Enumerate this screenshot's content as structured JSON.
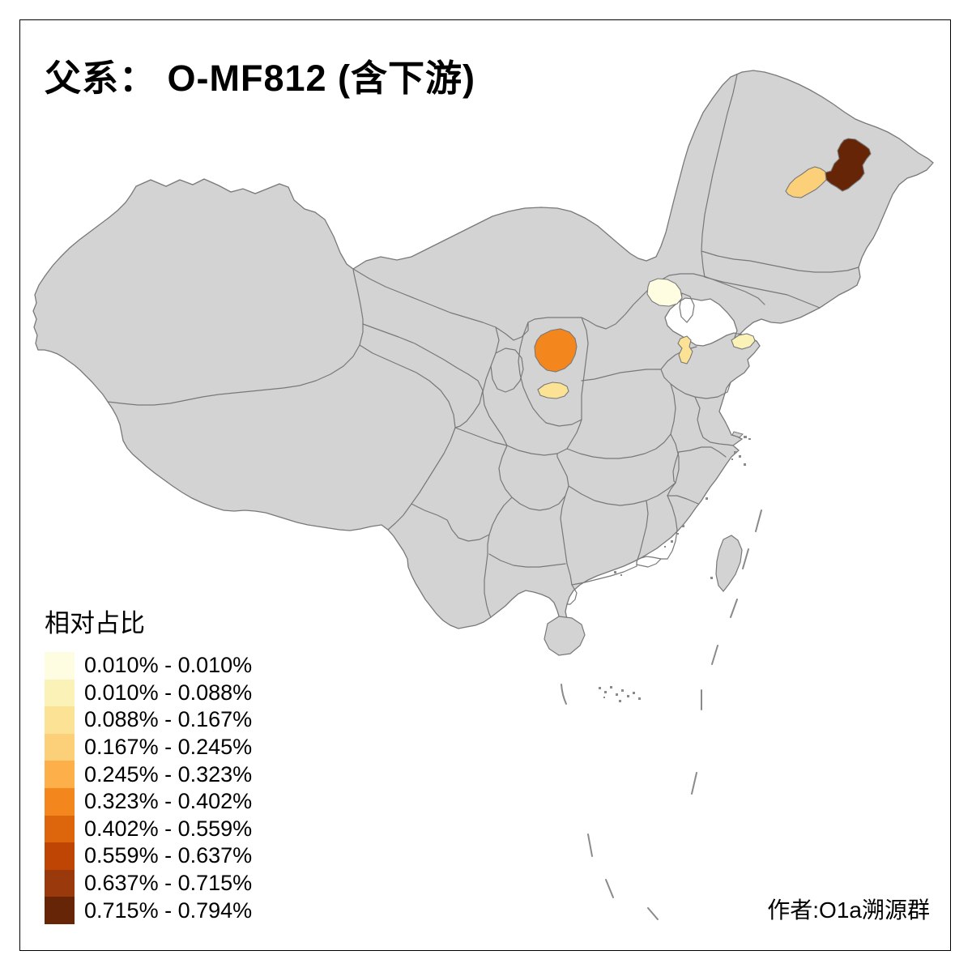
{
  "title": "父系： O-MF812 (含下游)",
  "legend": {
    "title": "相对占比",
    "classes": [
      {
        "color": "#FEFDE1",
        "label": "0.010% - 0.010%"
      },
      {
        "color": "#FBF2B7",
        "label": "0.010% - 0.088%"
      },
      {
        "color": "#FBE295",
        "label": "0.088% - 0.167%"
      },
      {
        "color": "#FCD078",
        "label": "0.167% - 0.245%"
      },
      {
        "color": "#FDB04A",
        "label": "0.245% - 0.323%"
      },
      {
        "color": "#F4861E",
        "label": "0.323% - 0.402%"
      },
      {
        "color": "#DD660D",
        "label": "0.402% - 0.559%"
      },
      {
        "color": "#BF4504",
        "label": "0.559% - 0.637%"
      },
      {
        "color": "#9A3A0C",
        "label": "0.637% - 0.715%"
      },
      {
        "color": "#662506",
        "label": "0.715% - 0.794%"
      }
    ]
  },
  "credit": "作者:O1a溯源群",
  "map": {
    "land_color": "#D3D3D3",
    "border_color": "#787878",
    "dash_color": "#8A8A8A",
    "sea_color": "#FFFFFF",
    "regions": [
      {
        "id": "r1",
        "name": "heilongjiang-east-prefecture",
        "class_index": 10
      },
      {
        "id": "r2",
        "name": "heilongjiang-west-prefecture",
        "class_index": 4
      },
      {
        "id": "r3",
        "name": "beijing",
        "class_index": 1
      },
      {
        "id": "r4",
        "name": "shanxi-west-prefecture",
        "class_index": 6
      },
      {
        "id": "r5",
        "name": "shanxi-south-prefecture",
        "class_index": 3
      },
      {
        "id": "r6",
        "name": "shandong-west-prefecture",
        "class_index": 3
      },
      {
        "id": "r7",
        "name": "shandong-east-prefecture",
        "class_index": 2
      }
    ]
  },
  "chart_data": {
    "type": "heatmap",
    "title": "父系： O-MF812 (含下游)",
    "legend_title": "相对占比",
    "legend_position": "bottom-left",
    "unit": "%",
    "bins": [
      {
        "range": "0.010% - 0.010%",
        "color": "#FEFDE1"
      },
      {
        "range": "0.010% - 0.088%",
        "color": "#FBF2B7"
      },
      {
        "range": "0.088% - 0.167%",
        "color": "#FBE295"
      },
      {
        "range": "0.167% - 0.245%",
        "color": "#FCD078"
      },
      {
        "range": "0.245% - 0.323%",
        "color": "#FDB04A"
      },
      {
        "range": "0.323% - 0.402%",
        "color": "#F4861E"
      },
      {
        "range": "0.402% - 0.559%",
        "color": "#DD660D"
      },
      {
        "range": "0.559% - 0.637%",
        "color": "#BF4504"
      },
      {
        "range": "0.637% - 0.715%",
        "color": "#9A3A0C"
      },
      {
        "range": "0.715% - 0.794%",
        "color": "#662506"
      }
    ],
    "colored_regions": [
      {
        "location": "heilongjiang-east-prefecture",
        "bin": "0.715% - 0.794%"
      },
      {
        "location": "heilongjiang-west-prefecture",
        "bin": "0.167% - 0.245%"
      },
      {
        "location": "beijing",
        "bin": "0.010% - 0.010%"
      },
      {
        "location": "shanxi-west-prefecture",
        "bin": "0.323% - 0.402%"
      },
      {
        "location": "shanxi-south-prefecture",
        "bin": "0.088% - 0.167%"
      },
      {
        "location": "shandong-west-prefecture",
        "bin": "0.088% - 0.167%"
      },
      {
        "location": "shandong-east-prefecture",
        "bin": "0.010% - 0.088%"
      }
    ],
    "annotations": [
      "作者:O1a溯源群"
    ]
  }
}
